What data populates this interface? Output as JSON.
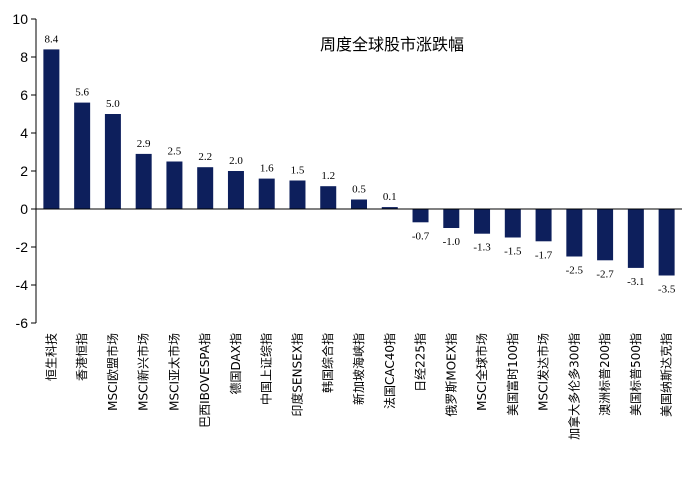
{
  "chart_data": {
    "type": "bar",
    "title": "周度全球股市涨跌幅",
    "xlabel": "",
    "ylabel": "",
    "ylim": [
      -6,
      10
    ],
    "yticks": [
      -6,
      -4,
      -2,
      0,
      2,
      4,
      6,
      8,
      10
    ],
    "grid": false,
    "bar_color": "#0d1f5c",
    "categories": [
      "恒生科技",
      "香港恒指",
      "MSCI欧盟市场",
      "MSCI新兴市场",
      "MSCI亚太市场",
      "巴西IBOVESPA指",
      "德国DAX指",
      "中国上证综指",
      "印度SENSEX指",
      "韩国综合指",
      "新加坡海峡指",
      "法国CAC40指",
      "日经225指",
      "俄罗斯MOEX指",
      "MSCI全球市场",
      "美国富时100指",
      "MSCI发达市场",
      "加拿大多伦多300指",
      "澳洲标普200指",
      "美国标普500指",
      "美国纳斯达克指"
    ],
    "values": [
      8.4,
      5.6,
      5.0,
      2.9,
      2.5,
      2.2,
      2.0,
      1.6,
      1.5,
      1.2,
      0.5,
      0.1,
      -0.7,
      -1.0,
      -1.3,
      -1.5,
      -1.7,
      -2.5,
      -2.7,
      -3.1,
      -3.5
    ],
    "value_labels": [
      "8.4",
      "5.6",
      "5.0",
      "2.9",
      "2.5",
      "2.2",
      "2.0",
      "1.6",
      "1.5",
      "1.2",
      "0.5",
      "0.1",
      "-0.7",
      "-1.0",
      "-1.3",
      "-1.5",
      "-1.7",
      "-2.5",
      "-2.7",
      "-3.1",
      "-3.5"
    ]
  }
}
